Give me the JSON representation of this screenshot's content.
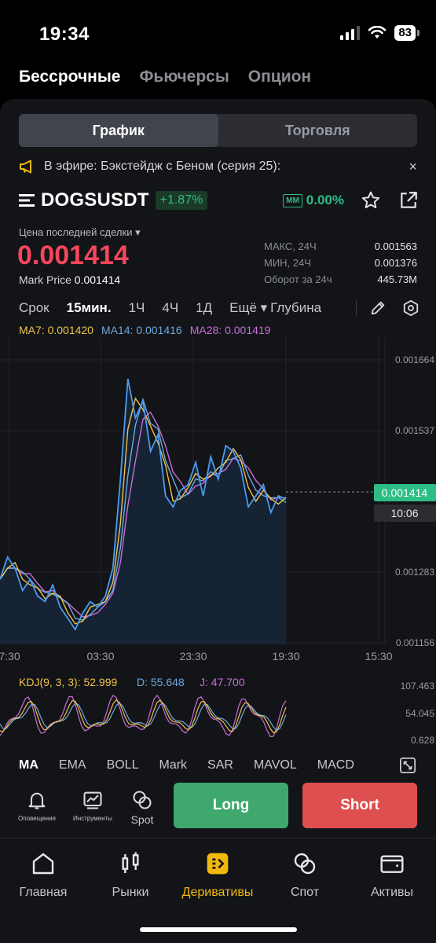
{
  "status": {
    "time": "19:34",
    "battery": "83"
  },
  "top_tabs": [
    {
      "label": "Бессрочные",
      "active": true
    },
    {
      "label": "Фьючерсы",
      "active": false
    },
    {
      "label": "Опцион",
      "active": false
    }
  ],
  "segment": {
    "chart": "График",
    "trade": "Торговля"
  },
  "announcement": {
    "text": "В эфире: Бэкстейдж с Беном (серия 25):",
    "close": "×"
  },
  "ticker": {
    "symbol": "DOGSUSDT",
    "change": "+1.87%",
    "mm_tag": "MM",
    "mm_value": "0.00%",
    "last_price_label": "Цена последней сделки ▾",
    "last_price": "0.001414",
    "mark_price_label": "Mark Price",
    "mark_price": "0.001414",
    "stats": [
      {
        "k": "МАКС, 24Ч",
        "v": "0.001563"
      },
      {
        "k": "МИН, 24Ч",
        "v": "0.001376"
      },
      {
        "k": "Оборот за 24ч",
        "v": "445.73M"
      }
    ]
  },
  "intervals": [
    "Срок",
    "15мин.",
    "1Ч",
    "4Ч",
    "1Д",
    "Ещё ▾",
    "Глубина"
  ],
  "active_interval": "15мин.",
  "ma_legend": [
    {
      "text": "MA7: 0.001420",
      "color": "#f0c24b"
    },
    {
      "text": "MA14: 0.001416",
      "color": "#6fa8dc"
    },
    {
      "text": "MA28: 0.001419",
      "color": "#c86dd7"
    }
  ],
  "chart_data": {
    "type": "line",
    "y_ticks": [
      "0.001664",
      "0.001537",
      "0.001283",
      "0.001156"
    ],
    "x_ticks": [
      "7:30",
      "03:30",
      "23:30",
      "19:30",
      "15:30"
    ],
    "ylim": [
      0.001156,
      0.001664
    ],
    "current_price": "0.001414",
    "current_time": "10:06",
    "price_series": [
      0.00127,
      0.00131,
      0.00129,
      0.00125,
      0.00127,
      0.00124,
      0.00123,
      0.00126,
      0.00122,
      0.0012,
      0.00118,
      0.00121,
      0.00123,
      0.00122,
      0.00124,
      0.00129,
      0.00145,
      0.00163,
      0.00156,
      0.00159,
      0.0015,
      0.00153,
      0.00142,
      0.0014,
      0.00143,
      0.00144,
      0.00148,
      0.00142,
      0.00149,
      0.00145,
      0.00151,
      0.0015,
      0.00147,
      0.0014,
      0.00142,
      0.00144,
      0.00139,
      0.00142,
      0.001414
    ],
    "kdj_label": "KDJ(9, 3, 3): 52.999",
    "kdj_d": "D: 55.648",
    "kdj_j": "J: 47.700",
    "kdj_ticks": [
      "107.463",
      "54.045",
      "0.628"
    ]
  },
  "indicators": [
    "MA",
    "EMA",
    "BOLL",
    "Mark",
    "SAR",
    "MAVOL",
    "MACD"
  ],
  "actions": {
    "alerts": "Оповещения",
    "tools": "Инструменты",
    "spot": "Spot",
    "long": "Long",
    "short": "Short"
  },
  "bottom_nav": [
    {
      "label": "Главная",
      "active": false
    },
    {
      "label": "Рынки",
      "active": false
    },
    {
      "label": "Деривативы",
      "active": true
    },
    {
      "label": "Спот",
      "active": false
    },
    {
      "label": "Активы",
      "active": false
    }
  ]
}
